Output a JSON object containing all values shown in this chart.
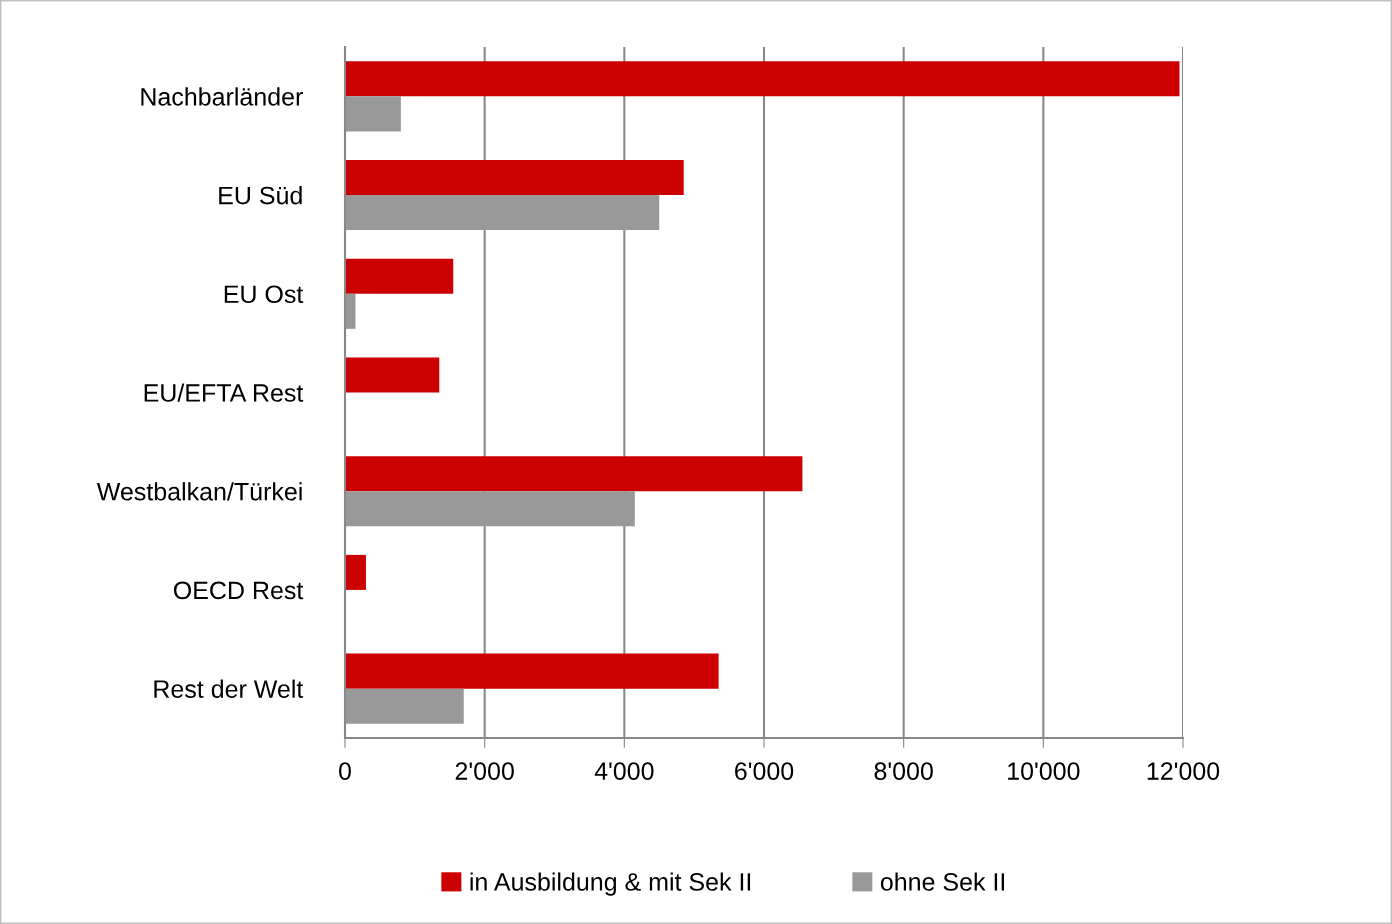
{
  "chart_data": {
    "type": "bar",
    "orientation": "horizontal",
    "categories": [
      "Nachbarländer",
      "EU Süd",
      "EU Ost",
      "EU/EFTA Rest",
      "Westbalkan/Türkei",
      "OECD Rest",
      "Rest der Welt"
    ],
    "series": [
      {
        "name": "in Ausbildung & mit Sek II",
        "color": "#cc0000",
        "values": [
          11950,
          4850,
          1550,
          1350,
          6550,
          300,
          5350
        ]
      },
      {
        "name": "ohne Sek II",
        "color": "#999999",
        "values": [
          800,
          4500,
          150,
          0,
          4150,
          0,
          1700
        ]
      }
    ],
    "xlim": [
      0,
      12000
    ],
    "xticks": [
      0,
      {
        "value": 2000,
        "label": "2'000"
      },
      {
        "value": 4000,
        "label": "4'000"
      },
      {
        "value": 6000,
        "label": "6'000"
      },
      {
        "value": 8000,
        "label": "8'000"
      },
      {
        "value": 10000,
        "label": "10'000"
      },
      {
        "value": 12000,
        "label": "12'000"
      }
    ],
    "grid": "x",
    "legend": "bottom"
  }
}
